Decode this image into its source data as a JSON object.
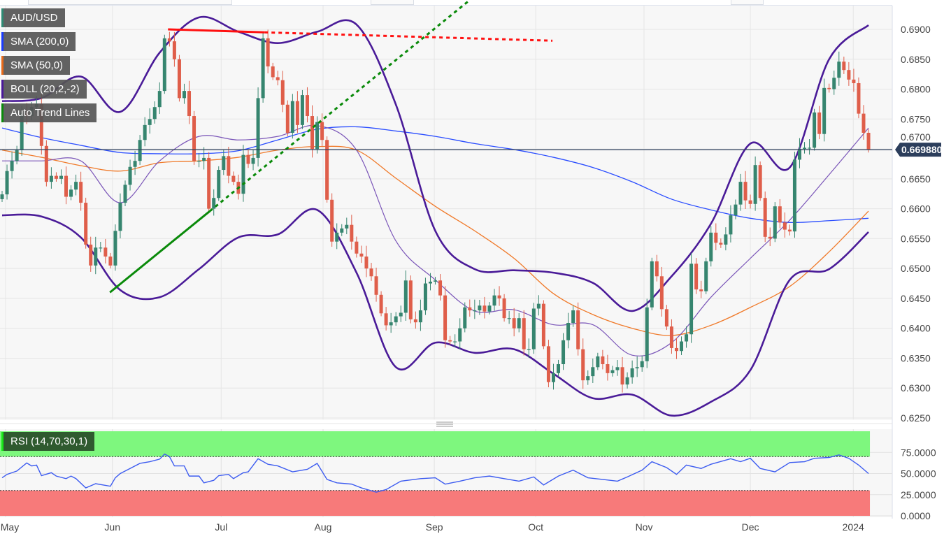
{
  "legend": {
    "symbol": "AUD/USD",
    "sma200": "SMA (200,0)",
    "sma50": "SMA (50,0)",
    "boll": "BOLL (20,2,-2)",
    "trend": "Auto Trend Lines",
    "rsi": "RSI (14,70,30,1)"
  },
  "colors": {
    "up": "#36856f",
    "down": "#df5e4a",
    "sma200": "#2a4dff",
    "sma50": "#f07a2a",
    "boll": "#4a1b98",
    "trend_green": "#0a8a0a",
    "trend_red": "#ff1010",
    "rsi_line": "#3d5cf0",
    "last_price": "#2c3e5c"
  },
  "chart_data": {
    "type": "candlestick",
    "title": "AUD/USD",
    "ylim": [
      0.625,
      0.69
    ],
    "y_ticks": [
      "0.6900",
      "0.6850",
      "0.6800",
      "0.6750",
      "0.6700",
      "0.6650",
      "0.6600",
      "0.6550",
      "0.6500",
      "0.6450",
      "0.6400",
      "0.6350",
      "0.6300",
      "0.6250"
    ],
    "last_price": "0.669880",
    "last_price_value": 0.66988,
    "x_ticks": [
      {
        "label": "May",
        "index": 0.7
      },
      {
        "label": "Jun",
        "index": 22.4
      },
      {
        "label": "Jul",
        "index": 44.5
      },
      {
        "label": "Aug",
        "index": 65.2
      },
      {
        "label": "Sep",
        "index": 87.8
      },
      {
        "label": "Oct",
        "index": 108.4
      },
      {
        "label": "Nov",
        "index": 130.4
      },
      {
        "label": "Dec",
        "index": 152.0
      },
      {
        "label": "2024",
        "index": 172.9
      }
    ],
    "closes": [
      0.6624,
      0.6663,
      0.668,
      0.6698,
      0.676,
      0.6755,
      0.677,
      0.6775,
      0.6705,
      0.6645,
      0.6655,
      0.665,
      0.6655,
      0.662,
      0.6632,
      0.6645,
      0.661,
      0.654,
      0.6505,
      0.6535,
      0.6535,
      0.652,
      0.6505,
      0.6563,
      0.661,
      0.664,
      0.667,
      0.668,
      0.6715,
      0.674,
      0.675,
      0.677,
      0.6797,
      0.6885,
      0.688,
      0.685,
      0.6785,
      0.6797,
      0.6755,
      0.668,
      0.668,
      0.6685,
      0.66,
      0.6618,
      0.6665,
      0.6688,
      0.6655,
      0.6645,
      0.6625,
      0.669,
      0.6675,
      0.6685,
      0.6785,
      0.6885,
      0.6838,
      0.682,
      0.6815,
      0.6774,
      0.6727,
      0.678,
      0.674,
      0.679,
      0.6755,
      0.67,
      0.6745,
      0.6715,
      0.6615,
      0.6545,
      0.656,
      0.6567,
      0.6573,
      0.6545,
      0.6525,
      0.652,
      0.65,
      0.6487,
      0.6456,
      0.6425,
      0.6405,
      0.641,
      0.642,
      0.6426,
      0.648,
      0.6415,
      0.641,
      0.643,
      0.6475,
      0.6478,
      0.648,
      0.6455,
      0.638,
      0.6378,
      0.6378,
      0.64,
      0.6435,
      0.643,
      0.643,
      0.6438,
      0.6428,
      0.6438,
      0.6455,
      0.645,
      0.6417,
      0.6417,
      0.64,
      0.6417,
      0.6365,
      0.6365,
      0.6433,
      0.6441,
      0.637,
      0.631,
      0.6325,
      0.634,
      0.638,
      0.6409,
      0.643,
      0.6365,
      0.6313,
      0.632,
      0.6335,
      0.6353,
      0.634,
      0.6325,
      0.633,
      0.6335,
      0.6306,
      0.6318,
      0.6333,
      0.6335,
      0.6345,
      0.6435,
      0.6512,
      0.6487,
      0.6432,
      0.6403,
      0.6367,
      0.6362,
      0.6378,
      0.639,
      0.6508,
      0.6465,
      0.6462,
      0.6512,
      0.656,
      0.6543,
      0.654,
      0.6557,
      0.6589,
      0.6607,
      0.6645,
      0.6614,
      0.6608,
      0.6673,
      0.6618,
      0.6553,
      0.655,
      0.6604,
      0.6577,
      0.6565,
      0.6562,
      0.6682,
      0.67,
      0.6702,
      0.6702,
      0.6761,
      0.6725,
      0.6802,
      0.68,
      0.6819,
      0.6846,
      0.6832,
      0.6816,
      0.681,
      0.6759,
      0.6727,
      0.66988
    ],
    "indicator_sample_step": 8,
    "sma200": [
      0.6735,
      0.6719,
      0.6706,
      0.6694,
      0.6692,
      0.6692,
      0.6697,
      0.6715,
      0.6733,
      0.6737,
      0.673,
      0.6721,
      0.6709,
      0.6699,
      0.6686,
      0.6669,
      0.6645,
      0.6616,
      0.6598,
      0.6584,
      0.6577,
      0.658,
      0.6584
    ],
    "sma50": [
      0.6698,
      0.6686,
      0.6672,
      0.6663,
      0.6677,
      0.668,
      0.6686,
      0.6698,
      0.6704,
      0.6698,
      0.6651,
      0.6604,
      0.6563,
      0.6517,
      0.6458,
      0.6423,
      0.64,
      0.6388,
      0.6405,
      0.6435,
      0.647,
      0.6528,
      0.6596
    ],
    "boll_upper": [
      0.678,
      0.6785,
      0.6821,
      0.6762,
      0.6861,
      0.692,
      0.6896,
      0.6877,
      0.6896,
      0.6908,
      0.6774,
      0.6563,
      0.6499,
      0.6497,
      0.6493,
      0.6476,
      0.6429,
      0.6487,
      0.6575,
      0.6709,
      0.6669,
      0.685,
      0.6907
    ],
    "boll_mid": [
      0.668,
      0.668,
      0.668,
      0.661,
      0.668,
      0.6721,
      0.6715,
      0.6721,
      0.6739,
      0.6698,
      0.6546,
      0.6481,
      0.6429,
      0.6431,
      0.6406,
      0.6406,
      0.6355,
      0.6376,
      0.6452,
      0.6517,
      0.6581,
      0.6657,
      0.6735
    ],
    "boll_lower": [
      0.6589,
      0.6587,
      0.6552,
      0.6464,
      0.6452,
      0.6499,
      0.6552,
      0.6557,
      0.6598,
      0.6493,
      0.6335,
      0.6376,
      0.6359,
      0.6365,
      0.6324,
      0.6283,
      0.6289,
      0.6254,
      0.6277,
      0.633,
      0.6481,
      0.6499,
      0.6561
    ],
    "trend_lines": [
      {
        "name": "resistance",
        "color": "red",
        "solid": [
          [
            33.7,
            0.69
          ],
          [
            53.3,
            0.6895
          ]
        ],
        "projection": [
          [
            53.3,
            0.6895
          ],
          [
            111.8,
            0.6881
          ]
        ]
      },
      {
        "name": "support",
        "color": "green",
        "solid": [
          [
            21.9,
            0.646
          ],
          [
            42.2,
            0.6596
          ]
        ],
        "projection": [
          [
            42.2,
            0.6596
          ],
          [
            95.0,
            0.6949
          ]
        ]
      }
    ],
    "rsi": {
      "period": 14,
      "overbought": 70,
      "oversold": 30,
      "y_ticks": [
        "75.0000",
        "50.0000",
        "25.0000",
        "0.0000"
      ],
      "y_tick_values": [
        75,
        50,
        25,
        0
      ],
      "points": [
        [
          0,
          45
        ],
        [
          1,
          49
        ],
        [
          3,
          53
        ],
        [
          5,
          62.5
        ],
        [
          6,
          59
        ],
        [
          7,
          60
        ],
        [
          8,
          47.5
        ],
        [
          10,
          51
        ],
        [
          11,
          47
        ],
        [
          13,
          44
        ],
        [
          14,
          47
        ],
        [
          15,
          44
        ],
        [
          17,
          33
        ],
        [
          19,
          38
        ],
        [
          22,
          35
        ],
        [
          23,
          45
        ],
        [
          24,
          50
        ],
        [
          26,
          56
        ],
        [
          28,
          62
        ],
        [
          30,
          64
        ],
        [
          32,
          67
        ],
        [
          33,
          73
        ],
        [
          34,
          70
        ],
        [
          35,
          59
        ],
        [
          37,
          59
        ],
        [
          38,
          47
        ],
        [
          40,
          47
        ],
        [
          41,
          39
        ],
        [
          43,
          42
        ],
        [
          44,
          47.5
        ],
        [
          46,
          49
        ],
        [
          47,
          44
        ],
        [
          49,
          51
        ],
        [
          50,
          52
        ],
        [
          52,
          67.5
        ],
        [
          54,
          61
        ],
        [
          56,
          59
        ],
        [
          59,
          52
        ],
        [
          62,
          55
        ],
        [
          64,
          62
        ],
        [
          66,
          43
        ],
        [
          68,
          39
        ],
        [
          71,
          37.5
        ],
        [
          73,
          33
        ],
        [
          76,
          28
        ],
        [
          78,
          31
        ],
        [
          81,
          41
        ],
        [
          85,
          44
        ],
        [
          88,
          45
        ],
        [
          90,
          37.5
        ],
        [
          93,
          41
        ],
        [
          96,
          45
        ],
        [
          99,
          47
        ],
        [
          102,
          44
        ],
        [
          105,
          41
        ],
        [
          108,
          46
        ],
        [
          110,
          36.5
        ],
        [
          113,
          47
        ],
        [
          116,
          54
        ],
        [
          119,
          45
        ],
        [
          122,
          43
        ],
        [
          125,
          41
        ],
        [
          127,
          46
        ],
        [
          130,
          54
        ],
        [
          132,
          64
        ],
        [
          135,
          57
        ],
        [
          137,
          49
        ],
        [
          139,
          60
        ],
        [
          142,
          56
        ],
        [
          144,
          61
        ],
        [
          148,
          67.5
        ],
        [
          150,
          64
        ],
        [
          152,
          68
        ],
        [
          154,
          56
        ],
        [
          157,
          52
        ],
        [
          160,
          63
        ],
        [
          163,
          64
        ],
        [
          165,
          68
        ],
        [
          168,
          69
        ],
        [
          170,
          72
        ],
        [
          172,
          68
        ],
        [
          174,
          60
        ],
        [
          176,
          50
        ]
      ]
    }
  }
}
